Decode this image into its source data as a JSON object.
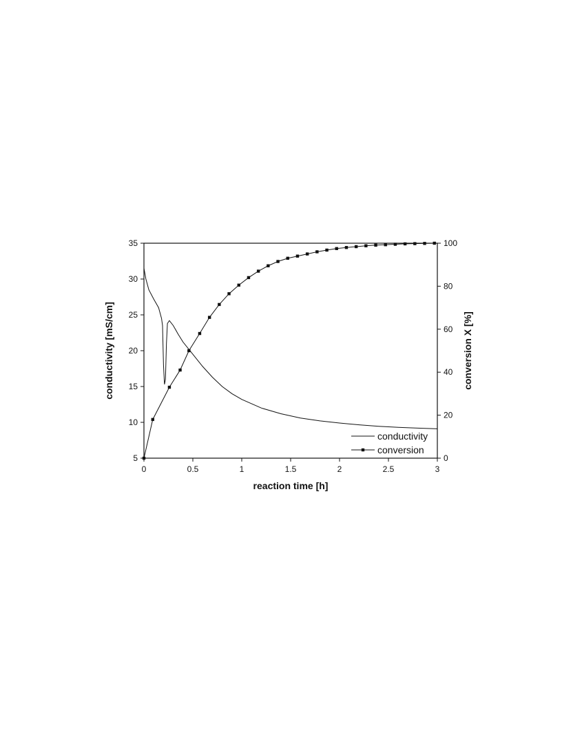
{
  "chart_data": {
    "type": "line",
    "x_label": "reaction time [h]",
    "y_label": "conductivity [mS/cm]",
    "y2_label": "conversion X [%]",
    "xlim": [
      0,
      3
    ],
    "xticks": [
      0,
      0.5,
      1,
      1.5,
      2,
      2.5,
      3
    ],
    "ylim": [
      5,
      35
    ],
    "yticks": [
      5,
      10,
      15,
      20,
      25,
      30,
      35
    ],
    "y2lim": [
      0,
      100
    ],
    "y2ticks": [
      0,
      20,
      40,
      60,
      80,
      100
    ],
    "legend": "lower-right",
    "series": [
      {
        "name": "conductivity",
        "color": "#111111",
        "marker": false,
        "x": [
          0,
          0.02,
          0.05,
          0.1,
          0.15,
          0.18,
          0.19,
          0.2,
          0.21,
          0.22,
          0.23,
          0.24,
          0.26,
          0.3,
          0.35,
          0.4,
          0.5,
          0.6,
          0.7,
          0.8,
          0.9,
          1.0,
          1.2,
          1.4,
          1.6,
          1.8,
          2.0,
          2.2,
          2.4,
          2.6,
          2.8,
          3.0
        ],
        "values": [
          31.5,
          30,
          28.5,
          27.2,
          26,
          24.5,
          23.5,
          18,
          15.3,
          16,
          21,
          23.8,
          24.2,
          23.5,
          22.3,
          21.2,
          19.5,
          17.8,
          16.3,
          15,
          14,
          13.2,
          12,
          11.2,
          10.6,
          10.2,
          9.9,
          9.65,
          9.45,
          9.3,
          9.2,
          9.1
        ]
      },
      {
        "name": "conversion",
        "color": "#111111",
        "marker": true,
        "axis": "y2",
        "x": [
          0,
          0.09,
          0.26,
          0.37,
          0.46,
          0.57,
          0.67,
          0.77,
          0.87,
          0.97,
          1.07,
          1.17,
          1.27,
          1.37,
          1.47,
          1.57,
          1.67,
          1.77,
          1.87,
          1.97,
          2.07,
          2.17,
          2.27,
          2.37,
          2.47,
          2.57,
          2.67,
          2.77,
          2.87,
          2.97
        ],
        "values": [
          0,
          18,
          33,
          41,
          50,
          58,
          65.5,
          71.5,
          76.5,
          80.5,
          84,
          87,
          89.5,
          91.5,
          93,
          94,
          95,
          96,
          96.8,
          97.5,
          98,
          98.4,
          98.8,
          99.1,
          99.3,
          99.5,
          99.7,
          99.8,
          99.9,
          100
        ]
      }
    ]
  }
}
